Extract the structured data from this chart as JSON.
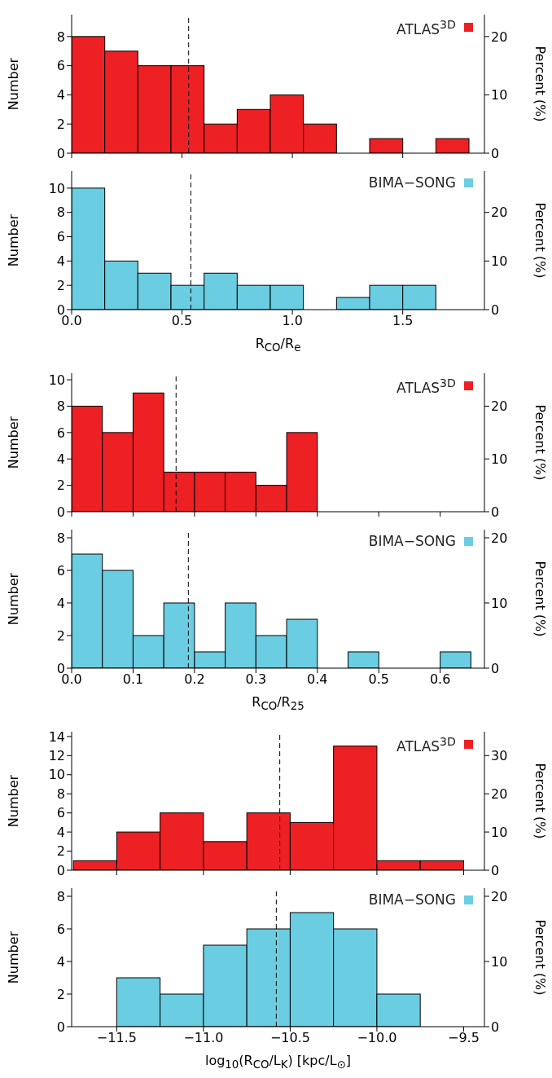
{
  "chart_data": [
    {
      "type": "histogram",
      "bins": [
        0,
        0.15,
        0.3,
        0.45,
        0.6,
        0.75,
        0.9,
        1.05,
        1.2,
        1.35,
        1.5,
        1.65,
        1.8
      ],
      "series": [
        {
          "name": "ATLAS$^{3D}$",
          "color": "#ed2024",
          "values": [
            8,
            7,
            6,
            6,
            2,
            3,
            4,
            2,
            0,
            1,
            0,
            1
          ]
        }
      ],
      "ylabel": "Number",
      "y2label": "Percent (%)",
      "xlim": [
        0,
        1.87
      ],
      "xticks": [
        0,
        0.5,
        1,
        1.5
      ],
      "ylim": [
        0,
        9.5
      ],
      "yticks": [
        0,
        2,
        4,
        6,
        8
      ],
      "y2lim": [
        0,
        23.75
      ],
      "y2ticks": [
        0,
        10,
        20
      ],
      "tick_labels": "y",
      "legend": "top right",
      "ref_lines": [
        {
          "axis": "x",
          "value": 0.53,
          "line_style": "dashed"
        }
      ]
    },
    {
      "type": "histogram",
      "bins": [
        0,
        0.15,
        0.3,
        0.45,
        0.6,
        0.75,
        0.9,
        1.05,
        1.2,
        1.35,
        1.5,
        1.65
      ],
      "series": [
        {
          "name": "BIMA−SONG",
          "color": "#6bcde1",
          "values": [
            10,
            4,
            3,
            2,
            3,
            2,
            2,
            0,
            1,
            2,
            2
          ]
        }
      ],
      "xlabel": "R$_{CO}$/R$_{e}$",
      "ylabel": "Number",
      "y2label": "Percent (%)",
      "xlim": [
        0,
        1.87
      ],
      "xticks": [
        {
          "value": 0,
          "label": "0.0"
        },
        {
          "value": 0.5,
          "label": "0.5"
        },
        {
          "value": 1,
          "label": "1.0"
        },
        {
          "value": 1.5,
          "label": "1.5"
        }
      ],
      "ylim": [
        0,
        11.4
      ],
      "yticks": [
        0,
        2,
        4,
        6,
        8,
        10
      ],
      "y2lim": [
        0,
        28.5
      ],
      "y2ticks": [
        0,
        10,
        20
      ],
      "legend": "top right",
      "ref_lines": [
        {
          "axis": "x",
          "value": 0.54,
          "line_style": "dashed"
        }
      ]
    },
    {
      "type": "histogram",
      "bins": [
        0,
        0.05,
        0.1,
        0.15,
        0.2,
        0.25,
        0.3,
        0.35,
        0.4
      ],
      "series": [
        {
          "name": "ATLAS$^{3D}$",
          "color": "#ed2024",
          "values": [
            8,
            6,
            9,
            3,
            3,
            3,
            2,
            6
          ]
        }
      ],
      "ylabel": "Number",
      "y2label": "Percent (%)",
      "xlim": [
        0,
        0.672
      ],
      "xticks": [
        0,
        0.1,
        0.2,
        0.3,
        0.4,
        0.5,
        0.6
      ],
      "ylim": [
        0,
        10.5
      ],
      "yticks": [
        0,
        2,
        4,
        6,
        8,
        10
      ],
      "y2lim": [
        0,
        26.25
      ],
      "y2ticks": [
        0,
        10,
        20
      ],
      "tick_labels": "y",
      "legend": "top right",
      "ref_lines": [
        {
          "axis": "x",
          "value": 0.17,
          "line_style": "dashed"
        }
      ]
    },
    {
      "type": "histogram",
      "bins": [
        0,
        0.05,
        0.1,
        0.15,
        0.2,
        0.25,
        0.3,
        0.35,
        0.4,
        0.45,
        0.5,
        0.55,
        0.6,
        0.65
      ],
      "series": [
        {
          "name": "BIMA−SONG",
          "color": "#6bcde1",
          "values": [
            7,
            6,
            2,
            4,
            1,
            4,
            2,
            3,
            0,
            1,
            0,
            0,
            1
          ]
        }
      ],
      "xlabel": "R$_{CO}$/R$_{25}$",
      "ylabel": "Number",
      "y2label": "Percent (%)",
      "xlim": [
        0,
        0.672
      ],
      "xticks": [
        {
          "value": 0,
          "label": "0.0"
        },
        {
          "value": 0.1,
          "label": "0.1"
        },
        {
          "value": 0.2,
          "label": "0.2"
        },
        {
          "value": 0.3,
          "label": "0.3"
        },
        {
          "value": 0.4,
          "label": "0.4"
        },
        {
          "value": 0.5,
          "label": "0.5"
        },
        {
          "value": 0.6,
          "label": "0.6"
        }
      ],
      "ylim": [
        0,
        8.5
      ],
      "yticks": [
        0,
        2,
        4,
        6,
        8
      ],
      "y2lim": [
        0,
        21.25
      ],
      "y2ticks": [
        0,
        10,
        20
      ],
      "legend": "top right",
      "ref_lines": [
        {
          "axis": "x",
          "value": 0.19,
          "line_style": "dashed"
        }
      ]
    },
    {
      "type": "histogram",
      "bins": [
        -11.75,
        -11.5,
        -11.25,
        -11,
        -10.75,
        -10.5,
        -10.25,
        -10,
        -9.75,
        -9.5
      ],
      "series": [
        {
          "name": "ATLAS$^{3D}$",
          "color": "#ed2024",
          "values": [
            1,
            4,
            6,
            3,
            6,
            5,
            13,
            1,
            1
          ]
        }
      ],
      "ylabel": "Number",
      "y2label": "Percent (%)",
      "xlim": [
        -11.76,
        -9.38
      ],
      "xticks": [
        -11.5,
        -11,
        -10.5,
        -10,
        -9.5
      ],
      "ylim": [
        0,
        14.5
      ],
      "yticks": [
        0,
        2,
        4,
        6,
        8,
        10,
        12,
        14
      ],
      "y2lim": [
        0,
        36.25
      ],
      "y2ticks": [
        0,
        10,
        20,
        30
      ],
      "tick_labels": "y",
      "legend": "top right",
      "ref_lines": [
        {
          "axis": "x",
          "value": -10.56,
          "line_style": "dashed"
        }
      ]
    },
    {
      "type": "histogram",
      "bins": [
        -11.5,
        -11.25,
        -11,
        -10.75,
        -10.5,
        -10.25,
        -10,
        -9.75
      ],
      "series": [
        {
          "name": "BIMA−SONG",
          "color": "#6bcde1",
          "values": [
            3,
            2,
            5,
            6,
            7,
            6,
            2
          ]
        }
      ],
      "xlabel": "log$_{10}$(R$_{CO}$/L$_{K}$) [kpc/L$_{⊙}$]",
      "ylabel": "Number",
      "y2label": "Percent (%)",
      "xlim": [
        -11.76,
        -9.38
      ],
      "xticks": [
        {
          "value": -11.5,
          "label": "−11.5"
        },
        {
          "value": -11,
          "label": "−11.0"
        },
        {
          "value": -10.5,
          "label": "−10.5"
        },
        {
          "value": -10,
          "label": "−10.0"
        },
        {
          "value": -9.5,
          "label": "−9.5"
        }
      ],
      "ylim": [
        0,
        8.5
      ],
      "yticks": [
        0,
        2,
        4,
        6,
        8
      ],
      "y2lim": [
        0,
        21.25
      ],
      "y2ticks": [
        0,
        10,
        20
      ],
      "legend": "top right",
      "ref_lines": [
        {
          "axis": "x",
          "value": -10.58,
          "line_style": "dashed"
        }
      ]
    }
  ]
}
